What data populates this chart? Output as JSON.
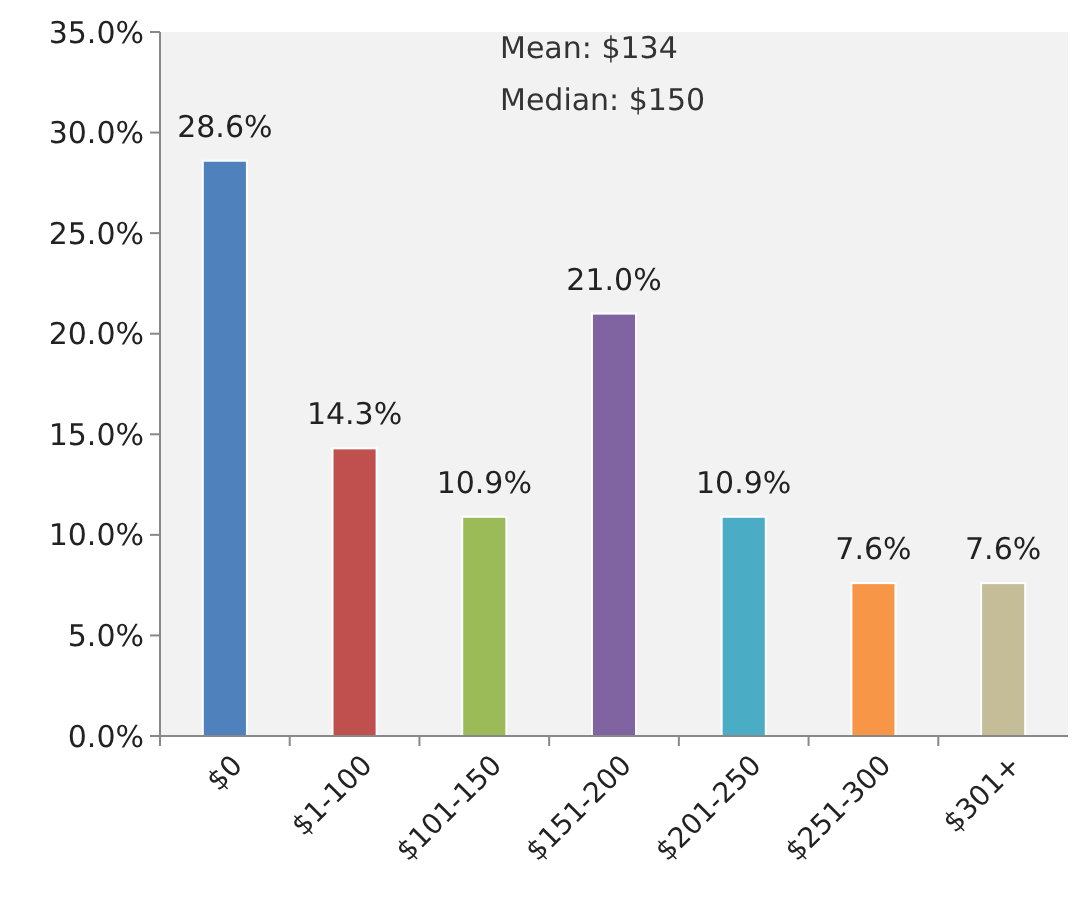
{
  "chart_data": {
    "type": "bar",
    "categories": [
      "$0",
      "$1-100",
      "$101-150",
      "$151-200",
      "$201-250",
      "$251-300",
      "$301+"
    ],
    "values": [
      28.6,
      14.3,
      10.9,
      21.0,
      10.9,
      7.6,
      7.6
    ],
    "colors": [
      "#4f81bd",
      "#c0504d",
      "#9bbb59",
      "#8064a2",
      "#4bacc6",
      "#f79646",
      "#c4bd97"
    ],
    "value_labels": [
      "28.6%",
      "14.3%",
      "10.9%",
      "21.0%",
      "10.9%",
      "7.6%",
      "7.6%"
    ],
    "ylim": [
      0,
      35
    ],
    "yticks": [
      {
        "value": 0,
        "label": "0.0%"
      },
      {
        "value": 5,
        "label": "5.0%"
      },
      {
        "value": 10,
        "label": "10.0%"
      },
      {
        "value": 15,
        "label": "15.0%"
      },
      {
        "value": 20,
        "label": "20.0%"
      },
      {
        "value": 25,
        "label": "25.0%"
      },
      {
        "value": 30,
        "label": "30.0%"
      },
      {
        "value": 35,
        "label": "35.0%"
      }
    ],
    "annotations": [
      "Mean: $134",
      "Median: $150"
    ]
  }
}
